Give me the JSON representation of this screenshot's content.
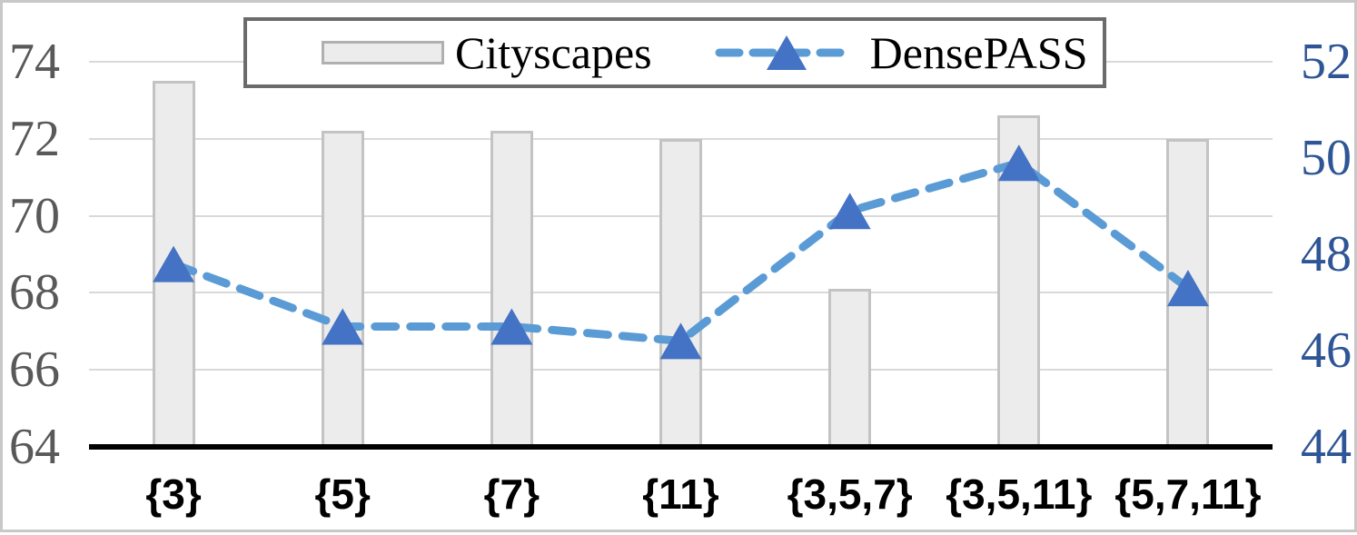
{
  "figure": {
    "description": "Dual-axis ablation chart comparing segmentation mIoU on Cityscapes (bars, left axis) and DensePASS (dashed line with triangle markers, right axis) for different dilation-rate sets"
  },
  "legend": {
    "cityscapes_label": "Cityscapes",
    "densepass_label": "DensePASS"
  },
  "chart_data": {
    "type": "bar",
    "subtype": "dual-axis bar + dashed line with triangle markers",
    "categories": [
      "{3}",
      "{5}",
      "{7}",
      "{11}",
      "{3,5,7}",
      "{3,5,11}",
      "{5,7,11}"
    ],
    "series": [
      {
        "name": "Cityscapes",
        "type": "bar",
        "axis": "left",
        "values": [
          73.5,
          72.2,
          72.2,
          72.0,
          68.1,
          72.6,
          72.0
        ]
      },
      {
        "name": "DensePASS",
        "type": "line",
        "axis": "right",
        "values": [
          47.8,
          46.5,
          46.5,
          46.2,
          48.9,
          49.9,
          47.3
        ]
      }
    ],
    "left_axis": {
      "min": 64,
      "max": 74,
      "ticks": [
        74,
        72,
        70,
        68,
        66,
        64
      ]
    },
    "right_axis": {
      "min": 44,
      "max": 52,
      "ticks": [
        52,
        50,
        48,
        46,
        44
      ]
    },
    "grid": "horizontal gridlines at left-axis ticks, bottom axis solid black",
    "legend_position": "top-center inside plot",
    "colors": {
      "bar_fill": "#ececec",
      "bar_border": "#c3c3c3",
      "line": "#5b9bd5",
      "marker": "#4472c4",
      "left_tick_text": "#595959",
      "right_tick_text": "#2e5596",
      "gridline": "#d9d9d9",
      "axis_line": "#000000",
      "legend_border": "#6b6b6b",
      "x_label_text": "#000000"
    }
  }
}
